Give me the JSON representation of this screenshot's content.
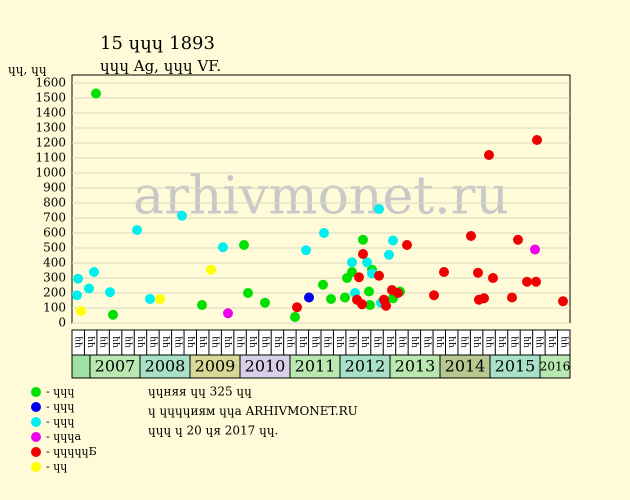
{
  "chart_data": {
    "type": "scatter",
    "title": "15 ɥɥɥ 1893",
    "subtitle": "ɥɥɥ Ag, ɥɥɥ VF.",
    "y_label": "ɥɥ, ɥɥ",
    "watermark": "arhivmonet.ru",
    "xlim": [
      2006.64,
      2016.6
    ],
    "xticks": [
      2007,
      2008,
      2009,
      2010,
      2011,
      2012,
      2013,
      2014,
      2015,
      2016
    ],
    "year_colors": [
      "#b8e8b0",
      "#a8e0c8",
      "#d8d898",
      "#d8d0e8",
      "#b8e8b0",
      "#a8e0c8",
      "#b8e8b0",
      "#b8c890",
      "#a8e0c8",
      "#b8e8b0"
    ],
    "lead_color": "#a0e0a0",
    "quarter_labels": [
      "ɥɥ",
      "ɥɥ",
      "ɥɥ",
      "ɥɥ",
      "ɥɥ",
      "ɥɥ",
      "ɥɥ",
      "ɥɥ",
      "ɥɥ",
      "ɥɥ",
      "ɥɥ",
      "ɥɥ",
      "ɥɥ",
      "ɥɥ",
      "ɥɥ",
      "ɥɥ",
      "ɥɥ",
      "ɥɥ",
      "ɥɥ",
      "ɥɥ",
      "ɥɥ",
      "ɥɥ",
      "ɥɥ",
      "ɥɥ",
      "ɥɥ",
      "ɥɥ",
      "ɥɥ",
      "ɥɥ",
      "ɥɥ",
      "ɥɥ",
      "ɥɥ",
      "ɥɥ",
      "ɥɥ",
      "ɥɥ",
      "ɥɥ",
      "ɥɥ",
      "ɥɥ",
      "ɥɥ",
      "ɥɥ",
      "ɥɥ"
    ],
    "ylim": [
      0,
      1600
    ],
    "yticks": [
      0,
      100,
      200,
      300,
      400,
      500,
      600,
      700,
      800,
      900,
      1000,
      1100,
      1200,
      1300,
      1400,
      1500,
      1600
    ],
    "grid": true,
    "series": [
      {
        "name": "- ɥɥɥ",
        "color": "#00e000",
        "x": [
          2007.12,
          2007.46,
          2009.24,
          2010.08,
          2010.16,
          2010.5,
          2011.1,
          2011.66,
          2011.82,
          2012.1,
          2012.14,
          2012.24,
          2012.46,
          2012.58,
          2012.6,
          2012.64,
          2012.9,
          2013.06,
          2013.2
        ],
        "values": [
          1530,
          55,
          120,
          520,
          200,
          135,
          40,
          255,
          160,
          170,
          300,
          340,
          555,
          210,
          120,
          355,
          135,
          165,
          210
        ]
      },
      {
        "name": "- ɥɥɥ",
        "color": "#0000ee",
        "x": [
          2011.38
        ],
        "values": [
          170
        ]
      },
      {
        "name": "- ɥɥɥ",
        "color": "#00eeee",
        "x": [
          2006.76,
          2006.74,
          2006.98,
          2007.08,
          2007.4,
          2007.94,
          2008.2,
          2008.84,
          2009.66,
          2011.32,
          2011.68,
          2012.24,
          2012.3,
          2012.54,
          2012.64,
          2012.78,
          2012.82,
          2012.98,
          2013.06
        ],
        "values": [
          295,
          185,
          230,
          340,
          205,
          620,
          160,
          715,
          505,
          485,
          600,
          405,
          200,
          405,
          330,
          760,
          135,
          455,
          550
        ]
      },
      {
        "name": "- ɥɥɥа",
        "color": "#ee00ee",
        "x": [
          2009.76,
          2015.9
        ],
        "values": [
          65,
          490
        ]
      },
      {
        "name": "- ɥɥɥɥɥБ",
        "color": "#ee0000",
        "x": [
          2011.14,
          2012.34,
          2012.38,
          2012.44,
          2012.46,
          2012.78,
          2012.88,
          2012.92,
          2013.04,
          2013.16,
          2013.34,
          2013.88,
          2014.08,
          2014.62,
          2014.76,
          2014.78,
          2014.88,
          2014.98,
          2015.06,
          2015.44,
          2015.56,
          2015.74,
          2015.94,
          2015.92,
          2016.46
        ],
        "values": [
          105,
          155,
          305,
          125,
          460,
          315,
          155,
          115,
          220,
          200,
          520,
          185,
          340,
          580,
          335,
          155,
          165,
          1120,
          300,
          170,
          555,
          275,
          1220,
          275,
          145
        ]
      },
      {
        "name": "- ɥɥ",
        "color": "#ffff00",
        "x": [
          2006.82,
          2008.4,
          2009.42
        ],
        "values": [
          80,
          160,
          355
        ]
      }
    ],
    "notes": [
      "ɥɥняя ɥɥ 325 ɥɥ",
      "ɥ ɥɥɥɥиям ɥɥа ARHIVMONET.RU",
      "ɥɥɥ ɥ 20 ɥя 2017 ɥɥ."
    ]
  }
}
